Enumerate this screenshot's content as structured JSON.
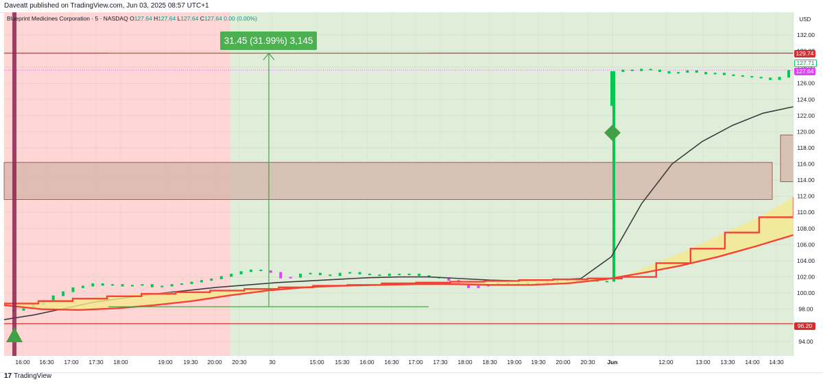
{
  "header": {
    "published": "Daveatt published on TradingView.com, Jun 03, 2025 08:57 UTC+1"
  },
  "legend": {
    "symbol": "Blueprint Medicines Corporation · 5 · NASDAQ",
    "o_key": "O",
    "o_val": "127.64",
    "h_key": "H",
    "h_val": "127.64",
    "l_key": "L",
    "l_val": "127.64",
    "c_key": "C",
    "c_val": "127.64",
    "change": "0.00 (0.00%)"
  },
  "measure_badge": "31.45 (31.99%) 3,145",
  "price_labels": {
    "upper_line": "129.74",
    "last_green": "127.71",
    "last_purple": "127.64",
    "lower_line": "96.20"
  },
  "footer": {
    "logo": "17",
    "brand": "TradingView"
  },
  "colors": {
    "bg_red_zone": "#ffd6d6",
    "bg_green_zone": "#e0eed9",
    "band_fill": "#d4b3a8",
    "red_line": "#d32f2f",
    "green": "#00c853",
    "magenta": "#e040fb",
    "black_ma": "#3b3b3b",
    "fill_yellow": "#f5e98c",
    "orange_red": "#f44336"
  },
  "chart_data": {
    "type": "line",
    "title": "Blueprint Medicines Corporation · 5 · NASDAQ",
    "currency": "USD",
    "ylim": [
      92.2,
      134.8
    ],
    "y_ticks": [
      "132.00",
      "130.00",
      "128.00",
      "126.00",
      "124.00",
      "122.00",
      "120.00",
      "118.00",
      "116.00",
      "114.00",
      "112.00",
      "110.00",
      "108.00",
      "106.00",
      "104.00",
      "102.00",
      "100.00",
      "98.00",
      "96.00",
      "94.00"
    ],
    "x_ticks": [
      "16:00",
      "16:30",
      "17:00",
      "17:30",
      "18:00",
      "19:00",
      "19:30",
      "20:00",
      "20:30",
      "30",
      "15:00",
      "15:30",
      "16:00",
      "16:30",
      "17:00",
      "17:30",
      "18:00",
      "18:30",
      "19:00",
      "19:30",
      "20:00",
      "20:30",
      "Jun",
      "12:00",
      "13:00",
      "13:30",
      "14:00",
      "14:30"
    ],
    "horizontal_lines": [
      129.74,
      96.2
    ],
    "band": [
      111.6,
      116.2
    ],
    "side_band": [
      113.8,
      119.6
    ],
    "last_price": 127.64,
    "measure": {
      "from": 98.3,
      "to": 129.74,
      "change": 31.45,
      "change_pct": 31.99,
      "ticks": 3145
    },
    "series": [
      {
        "name": "",
        "values": [
          97.9,
          98.1,
          98.6,
          99.1,
          99.7,
          100.2,
          100.7,
          100.9,
          101.2,
          101.0,
          101.1,
          100.9,
          101.0,
          101.1,
          100.8,
          100.9,
          101.1,
          101.2,
          101.4,
          101.6,
          101.8,
          102.1,
          102.4,
          102.7,
          102.9,
          102.8,
          102.6,
          101.9,
          102.0,
          102.4,
          102.5,
          102.3,
          102.2,
          102.5,
          102.6,
          102.4,
          102.3,
          102.2,
          102.4,
          102.3,
          102.4,
          102.2,
          102.0,
          101.9,
          101.6,
          101.2,
          100.7,
          100.9,
          101.1,
          101.3,
          101.2,
          101.0,
          101.3,
          101.2,
          101.4,
          101.6,
          101.5,
          101.8,
          101.6,
          101.5,
          101.5,
          127.5,
          127.7,
          127.6,
          127.8,
          127.7,
          127.5,
          127.3,
          127.4,
          127.6,
          127.4,
          127.2,
          127.3,
          127.1,
          127.0,
          126.9,
          126.8,
          126.7,
          126.5,
          126.8,
          127.64
        ]
      },
      {
        "name": "",
        "values": [
          96.7,
          97.3,
          98.1,
          98.9,
          99.4,
          99.9,
          100.3,
          100.7,
          101.0,
          101.3,
          101.5,
          101.7,
          101.9,
          102.0,
          102.0,
          101.8,
          101.6,
          101.5,
          101.6,
          101.8,
          104.5,
          111.1,
          116.0,
          118.8,
          120.8,
          122.3,
          123.1
        ]
      },
      {
        "name": "",
        "values": [
          98.5,
          98.0,
          97.9,
          98.1,
          98.5,
          99.0,
          99.7,
          100.3,
          100.7,
          100.9,
          101.0,
          101.1,
          101.1,
          101.0,
          101.0,
          101.2,
          101.7,
          102.5,
          103.4,
          104.5,
          105.8,
          107.2
        ]
      },
      {
        "name": "",
        "values": [
          98.7,
          99.0,
          99.3,
          99.6,
          99.9,
          100.1,
          100.3,
          100.5,
          100.7,
          100.9,
          101.0,
          101.2,
          101.3,
          101.4,
          101.5,
          101.6,
          101.7,
          101.8,
          102.0,
          103.7,
          105.5,
          107.5,
          109.4,
          111.9
        ]
      }
    ]
  }
}
